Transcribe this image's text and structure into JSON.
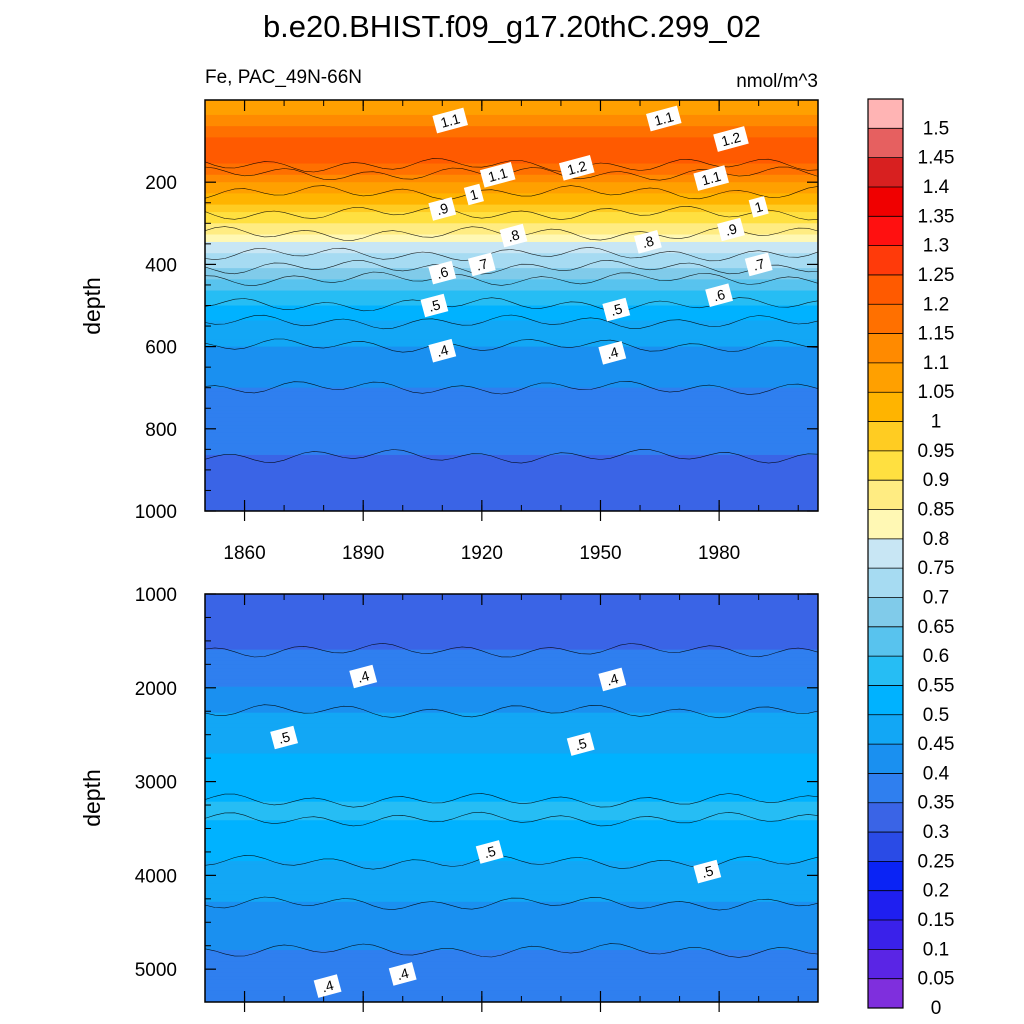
{
  "chart_data": {
    "type": "heatmap",
    "title": "b.e20.BHIST.f09_g17.20thC.299_02",
    "variable_label": "Fe, PAC_49N-66N",
    "units": "nmol/m^3",
    "x_range": [
      1850,
      2005
    ],
    "x_ticks": [
      1860,
      1890,
      1920,
      1950,
      1980
    ],
    "x_tick_labels": [
      "1860",
      "1890",
      "1920",
      "1950",
      "1980"
    ],
    "ylabel": "depth",
    "panels": [
      {
        "name": "upper-ocean",
        "y_range": [
          0,
          1000
        ],
        "y_ticks": [
          200,
          400,
          600,
          800,
          1000
        ],
        "y_tick_labels": [
          "200",
          "400",
          "600",
          "800",
          "1000"
        ],
        "y_inverted": true,
        "depth_profile": [
          {
            "depth": 10,
            "value": 1.05
          },
          {
            "depth": 40,
            "value": 1.1
          },
          {
            "depth": 60,
            "value": 1.15
          },
          {
            "depth": 90,
            "value": 1.2
          },
          {
            "depth": 150,
            "value": 1.22
          },
          {
            "depth": 200,
            "value": 1.1
          },
          {
            "depth": 250,
            "value": 1.0
          },
          {
            "depth": 300,
            "value": 0.9
          },
          {
            "depth": 350,
            "value": 0.8
          },
          {
            "depth": 380,
            "value": 0.74
          },
          {
            "depth": 420,
            "value": 0.68
          },
          {
            "depth": 460,
            "value": 0.6
          },
          {
            "depth": 520,
            "value": 0.52
          },
          {
            "depth": 580,
            "value": 0.46
          },
          {
            "depth": 650,
            "value": 0.42
          },
          {
            "depth": 800,
            "value": 0.36
          },
          {
            "depth": 1000,
            "value": 0.33
          }
        ],
        "contour_labels": [
          {
            "text": "1.1",
            "x": 1912,
            "depth": 50
          },
          {
            "text": "1.1",
            "x": 1966,
            "depth": 45
          },
          {
            "text": "1.2",
            "x": 1983,
            "depth": 95
          },
          {
            "text": "1.2",
            "x": 1944,
            "depth": 165
          },
          {
            "text": "1.1",
            "x": 1924,
            "depth": 182
          },
          {
            "text": "1.1",
            "x": 1978,
            "depth": 190
          },
          {
            "text": "1",
            "x": 1918,
            "depth": 230
          },
          {
            "text": "1",
            "x": 1990,
            "depth": 260
          },
          {
            "text": ".9",
            "x": 1910,
            "depth": 265
          },
          {
            "text": ".9",
            "x": 1983,
            "depth": 315
          },
          {
            "text": ".8",
            "x": 1928,
            "depth": 330
          },
          {
            "text": ".8",
            "x": 1962,
            "depth": 345
          },
          {
            "text": ".7",
            "x": 1920,
            "depth": 400
          },
          {
            "text": ".7",
            "x": 1990,
            "depth": 400
          },
          {
            "text": ".6",
            "x": 1910,
            "depth": 420
          },
          {
            "text": ".6",
            "x": 1980,
            "depth": 475
          },
          {
            "text": ".5",
            "x": 1908,
            "depth": 500
          },
          {
            "text": ".5",
            "x": 1954,
            "depth": 510
          },
          {
            "text": ".4",
            "x": 1910,
            "depth": 610
          },
          {
            "text": ".4",
            "x": 1953,
            "depth": 615
          }
        ]
      },
      {
        "name": "deep-ocean",
        "y_range": [
          1000,
          5350
        ],
        "y_ticks": [
          1000,
          2000,
          3000,
          4000,
          5000
        ],
        "y_tick_labels": [
          "1000",
          "2000",
          "3000",
          "4000",
          "5000"
        ],
        "y_inverted": true,
        "depth_profile": [
          {
            "depth": 1000,
            "value": 0.33
          },
          {
            "depth": 1300,
            "value": 0.32
          },
          {
            "depth": 1700,
            "value": 0.36
          },
          {
            "depth": 2000,
            "value": 0.4
          },
          {
            "depth": 2300,
            "value": 0.46
          },
          {
            "depth": 2700,
            "value": 0.5
          },
          {
            "depth": 3300,
            "value": 0.56
          },
          {
            "depth": 3700,
            "value": 0.52
          },
          {
            "depth": 4100,
            "value": 0.47
          },
          {
            "depth": 4600,
            "value": 0.42
          },
          {
            "depth": 5000,
            "value": 0.38
          },
          {
            "depth": 5350,
            "value": 0.4
          }
        ],
        "contour_labels": [
          {
            "text": ".4",
            "x": 1890,
            "depth": 1880
          },
          {
            "text": ".4",
            "x": 1953,
            "depth": 1910
          },
          {
            "text": ".5",
            "x": 1870,
            "depth": 2530
          },
          {
            "text": ".5",
            "x": 1945,
            "depth": 2600
          },
          {
            "text": ".5",
            "x": 1922,
            "depth": 3750
          },
          {
            "text": ".5",
            "x": 1977,
            "depth": 3960
          },
          {
            "text": ".4",
            "x": 1900,
            "depth": 5050
          },
          {
            "text": ".4",
            "x": 1881,
            "depth": 5180
          }
        ]
      }
    ],
    "colorbar": {
      "labels": [
        "1.5",
        "1.45",
        "1.4",
        "1.35",
        "1.3",
        "1.25",
        "1.2",
        "1.15",
        "1.1",
        "1.05",
        "1",
        "0.95",
        "0.9",
        "0.85",
        "0.8",
        "0.75",
        "0.7",
        "0.65",
        "0.6",
        "0.55",
        "0.5",
        "0.45",
        "0.4",
        "0.35",
        "0.3",
        "0.25",
        "0.2",
        "0.15",
        "0.1",
        "0.05",
        "0"
      ],
      "levels": [
        0,
        0.05,
        0.1,
        0.15,
        0.2,
        0.25,
        0.3,
        0.35,
        0.4,
        0.45,
        0.5,
        0.55,
        0.6,
        0.65,
        0.7,
        0.75,
        0.8,
        0.85,
        0.9,
        0.95,
        1,
        1.05,
        1.1,
        1.15,
        1.2,
        1.25,
        1.3,
        1.35,
        1.4,
        1.45,
        1.5
      ],
      "colors": [
        "#7f2fdd",
        "#5a25e5",
        "#3a21ea",
        "#1f1ff0",
        "#0a23f5",
        "#2a4be6",
        "#3a64e6",
        "#2f7fef",
        "#1a90f0",
        "#12a7f5",
        "#00b2ff",
        "#26bdf4",
        "#58c3ee",
        "#80cbea",
        "#a6dbf2",
        "#c8e6f4",
        "#fff8b4",
        "#ffec82",
        "#ffe040",
        "#ffcc22",
        "#ffb400",
        "#ffa000",
        "#ff8a00",
        "#ff7000",
        "#ff5a00",
        "#ff3a0a",
        "#ff1010",
        "#f00000",
        "#d82020",
        "#e66060",
        "#ffb4b4"
      ]
    }
  }
}
